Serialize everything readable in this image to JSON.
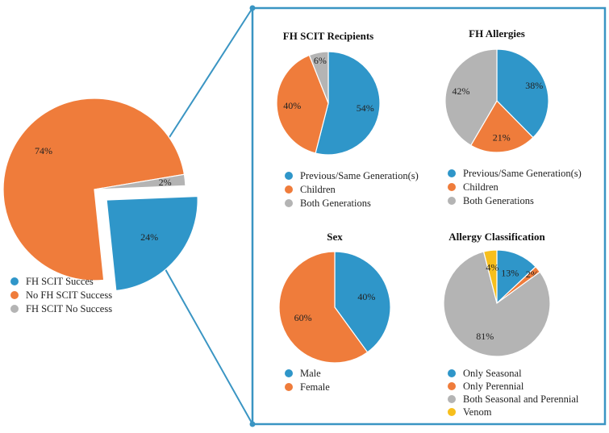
{
  "colors": {
    "blue": "#2f96c9",
    "orange": "#ef7c3b",
    "gray": "#b4b4b4",
    "yellow": "#f7bf1d",
    "frame": "#3a95c3"
  },
  "chart_data": [
    {
      "id": "overall",
      "type": "pie",
      "title": "",
      "slices": [
        {
          "label": "FH SCIT Succes",
          "value": 24,
          "display": "24%",
          "color": "blue",
          "exploded": true
        },
        {
          "label": "No FH SCIT Success",
          "value": 74,
          "display": "74%",
          "color": "orange"
        },
        {
          "label": "FH SCIT No Success",
          "value": 2,
          "display": "2%",
          "color": "gray"
        }
      ],
      "legend": [
        "FH SCIT Succes",
        "No FH SCIT Success",
        "FH SCIT No Success"
      ]
    },
    {
      "id": "recipients",
      "type": "pie",
      "title": "FH SCIT Recipients",
      "slices": [
        {
          "label": "Previous/Same Generation(s)",
          "value": 54,
          "display": "54%",
          "color": "blue"
        },
        {
          "label": "Children",
          "value": 40,
          "display": "40%",
          "color": "orange"
        },
        {
          "label": "Both Generations",
          "value": 6,
          "display": "6%",
          "color": "gray"
        }
      ],
      "legend": [
        "Previous/Same Generation(s)",
        "Children",
        "Both Generations"
      ]
    },
    {
      "id": "allergies",
      "type": "pie",
      "title": "FH Allergies",
      "slices": [
        {
          "label": "Previous/Same Generation(s)",
          "value": 38,
          "display": "38%",
          "color": "blue"
        },
        {
          "label": "Children",
          "value": 21,
          "display": "21%",
          "color": "orange"
        },
        {
          "label": "Both Generations",
          "value": 42,
          "display": "42%",
          "color": "gray"
        }
      ],
      "legend": [
        "Previous/Same Generation(s)",
        "Children",
        "Both Generations"
      ]
    },
    {
      "id": "sex",
      "type": "pie",
      "title": "Sex",
      "slices": [
        {
          "label": "Male",
          "value": 40,
          "display": "40%",
          "color": "blue"
        },
        {
          "label": "Female",
          "value": 60,
          "display": "60%",
          "color": "orange"
        }
      ],
      "legend": [
        "Male",
        "Female"
      ]
    },
    {
      "id": "classification",
      "type": "pie",
      "title": "Allergy Classification",
      "slices": [
        {
          "label": "Only Seasonal",
          "value": 13,
          "display": "13%",
          "color": "blue"
        },
        {
          "label": "Only Perennial",
          "value": 2,
          "display": "2%",
          "color": "orange"
        },
        {
          "label": "Both Seasonal and Perennial",
          "value": 81,
          "display": "81%",
          "color": "gray"
        },
        {
          "label": "Venom",
          "value": 4,
          "display": "4%",
          "color": "yellow"
        }
      ],
      "legend": [
        "Only Seasonal",
        "Only Perennial",
        "Both Seasonal and Perennial",
        "Venom"
      ]
    }
  ]
}
